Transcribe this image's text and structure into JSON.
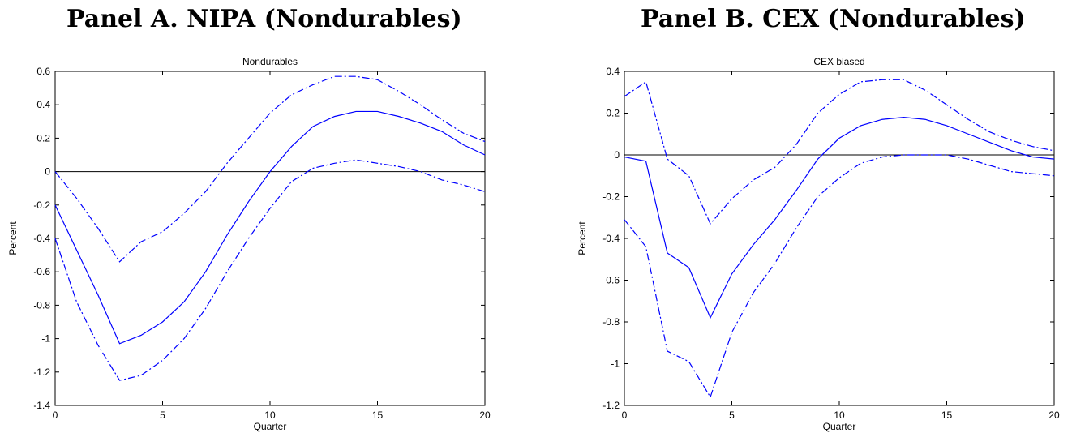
{
  "panels": [
    {
      "title": "Panel A. NIPA (Nondurables)"
    },
    {
      "title": "Panel B. CEX (Nondurables)"
    }
  ],
  "chart_data": [
    {
      "type": "line",
      "title": "Nondurables",
      "xlabel": "Quarter",
      "ylabel": "Percent",
      "xlim": [
        0,
        20
      ],
      "ylim": [
        -1.4,
        0.6
      ],
      "xticks": [
        0,
        5,
        10,
        15,
        20
      ],
      "yticks": [
        -1.4,
        -1.2,
        -1,
        -0.8,
        -0.6,
        -0.4,
        -0.2,
        0,
        0.2,
        0.4,
        0.6
      ],
      "grid": false,
      "zero_line": true,
      "line_color": "#0000ff",
      "x": [
        0,
        1,
        2,
        3,
        4,
        5,
        6,
        7,
        8,
        9,
        10,
        11,
        12,
        13,
        14,
        15,
        16,
        17,
        18,
        19,
        20
      ],
      "series": [
        {
          "style": "solid",
          "values": [
            -0.2,
            -0.47,
            -0.74,
            -1.03,
            -0.98,
            -0.9,
            -0.78,
            -0.6,
            -0.38,
            -0.18,
            0.0,
            0.15,
            0.27,
            0.33,
            0.36,
            0.36,
            0.33,
            0.29,
            0.24,
            0.16,
            0.1
          ]
        },
        {
          "style": "dashdot",
          "values": [
            0.0,
            -0.16,
            -0.34,
            -0.54,
            -0.42,
            -0.36,
            -0.25,
            -0.12,
            0.05,
            0.2,
            0.35,
            0.46,
            0.52,
            0.57,
            0.57,
            0.55,
            0.48,
            0.4,
            0.31,
            0.23,
            0.18
          ]
        },
        {
          "style": "dashdot",
          "values": [
            -0.4,
            -0.78,
            -1.04,
            -1.25,
            -1.22,
            -1.13,
            -1.0,
            -0.82,
            -0.6,
            -0.4,
            -0.22,
            -0.06,
            0.02,
            0.05,
            0.07,
            0.05,
            0.03,
            0.0,
            -0.05,
            -0.08,
            -0.12
          ]
        }
      ]
    },
    {
      "type": "line",
      "title": "CEX biased",
      "xlabel": "Quarter",
      "ylabel": "Percent",
      "xlim": [
        0,
        20
      ],
      "ylim": [
        -1.2,
        0.4
      ],
      "xticks": [
        0,
        5,
        10,
        15,
        20
      ],
      "yticks": [
        -1.2,
        -1,
        -0.8,
        -0.6,
        -0.4,
        -0.2,
        0,
        0.2,
        0.4
      ],
      "grid": false,
      "zero_line": true,
      "line_color": "#0000ff",
      "x": [
        0,
        1,
        2,
        3,
        4,
        5,
        6,
        7,
        8,
        9,
        10,
        11,
        12,
        13,
        14,
        15,
        16,
        17,
        18,
        19,
        20
      ],
      "series": [
        {
          "style": "solid",
          "values": [
            -0.01,
            -0.03,
            -0.47,
            -0.54,
            -0.78,
            -0.57,
            -0.43,
            -0.31,
            -0.17,
            -0.02,
            0.08,
            0.14,
            0.17,
            0.18,
            0.17,
            0.14,
            0.1,
            0.06,
            0.02,
            -0.01,
            -0.02
          ]
        },
        {
          "style": "dashdot",
          "values": [
            0.28,
            0.35,
            -0.02,
            -0.1,
            -0.33,
            -0.21,
            -0.12,
            -0.06,
            0.05,
            0.2,
            0.29,
            0.35,
            0.36,
            0.36,
            0.31,
            0.24,
            0.17,
            0.11,
            0.07,
            0.04,
            0.02
          ]
        },
        {
          "style": "dashdot",
          "values": [
            -0.31,
            -0.44,
            -0.94,
            -0.99,
            -1.16,
            -0.85,
            -0.66,
            -0.52,
            -0.35,
            -0.2,
            -0.11,
            -0.04,
            -0.01,
            0.0,
            0.0,
            0.0,
            -0.02,
            -0.05,
            -0.08,
            -0.09,
            -0.1
          ]
        }
      ]
    }
  ]
}
